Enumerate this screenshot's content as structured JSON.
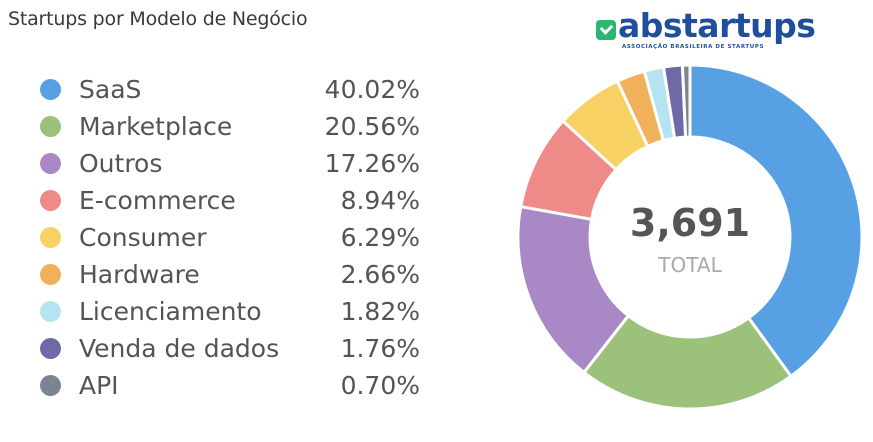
{
  "title": "Startups por Modelo de Negócio",
  "logo": {
    "name": "abstartups",
    "tagline": "ASSOCIAÇÃO BRASILEIRA DE STARTUPS",
    "icon": "checkmark-icon",
    "brand_color": "#1f4e9c",
    "mark_color": "#2bb673"
  },
  "legend_items": [
    {
      "label": "SaaS",
      "percent": "40.02%",
      "color": "#56a0e3"
    },
    {
      "label": "Marketplace",
      "percent": "20.56%",
      "color": "#9cc17a"
    },
    {
      "label": "Outros",
      "percent": "17.26%",
      "color": "#a889c5"
    },
    {
      "label": "E-commerce",
      "percent": "8.94%",
      "color": "#ee8a87"
    },
    {
      "label": "Consumer",
      "percent": "6.29%",
      "color": "#f7d163"
    },
    {
      "label": "Hardware",
      "percent": "2.66%",
      "color": "#f0b15b"
    },
    {
      "label": "Licenciamento",
      "percent": "1.82%",
      "color": "#b5e3f2"
    },
    {
      "label": "Venda de dados",
      "percent": "1.76%",
      "color": "#6d6aa6"
    },
    {
      "label": "API",
      "percent": "0.70%",
      "color": "#7b8592"
    }
  ],
  "chart_data": {
    "type": "pie",
    "variant": "donut",
    "categories": [
      "SaaS",
      "Marketplace",
      "Outros",
      "E-commerce",
      "Consumer",
      "Hardware",
      "Licenciamento",
      "Venda de dados",
      "API"
    ],
    "values": [
      40.02,
      20.56,
      17.26,
      8.94,
      6.29,
      2.66,
      1.82,
      1.76,
      0.7
    ],
    "colors": [
      "#56a0e3",
      "#9cc17a",
      "#a889c5",
      "#ee8a87",
      "#f7d163",
      "#f0b15b",
      "#b5e3f2",
      "#6d6aa6",
      "#7b8592"
    ],
    "center_value": "3,691",
    "center_label": "TOTAL",
    "legend_position": "left"
  }
}
